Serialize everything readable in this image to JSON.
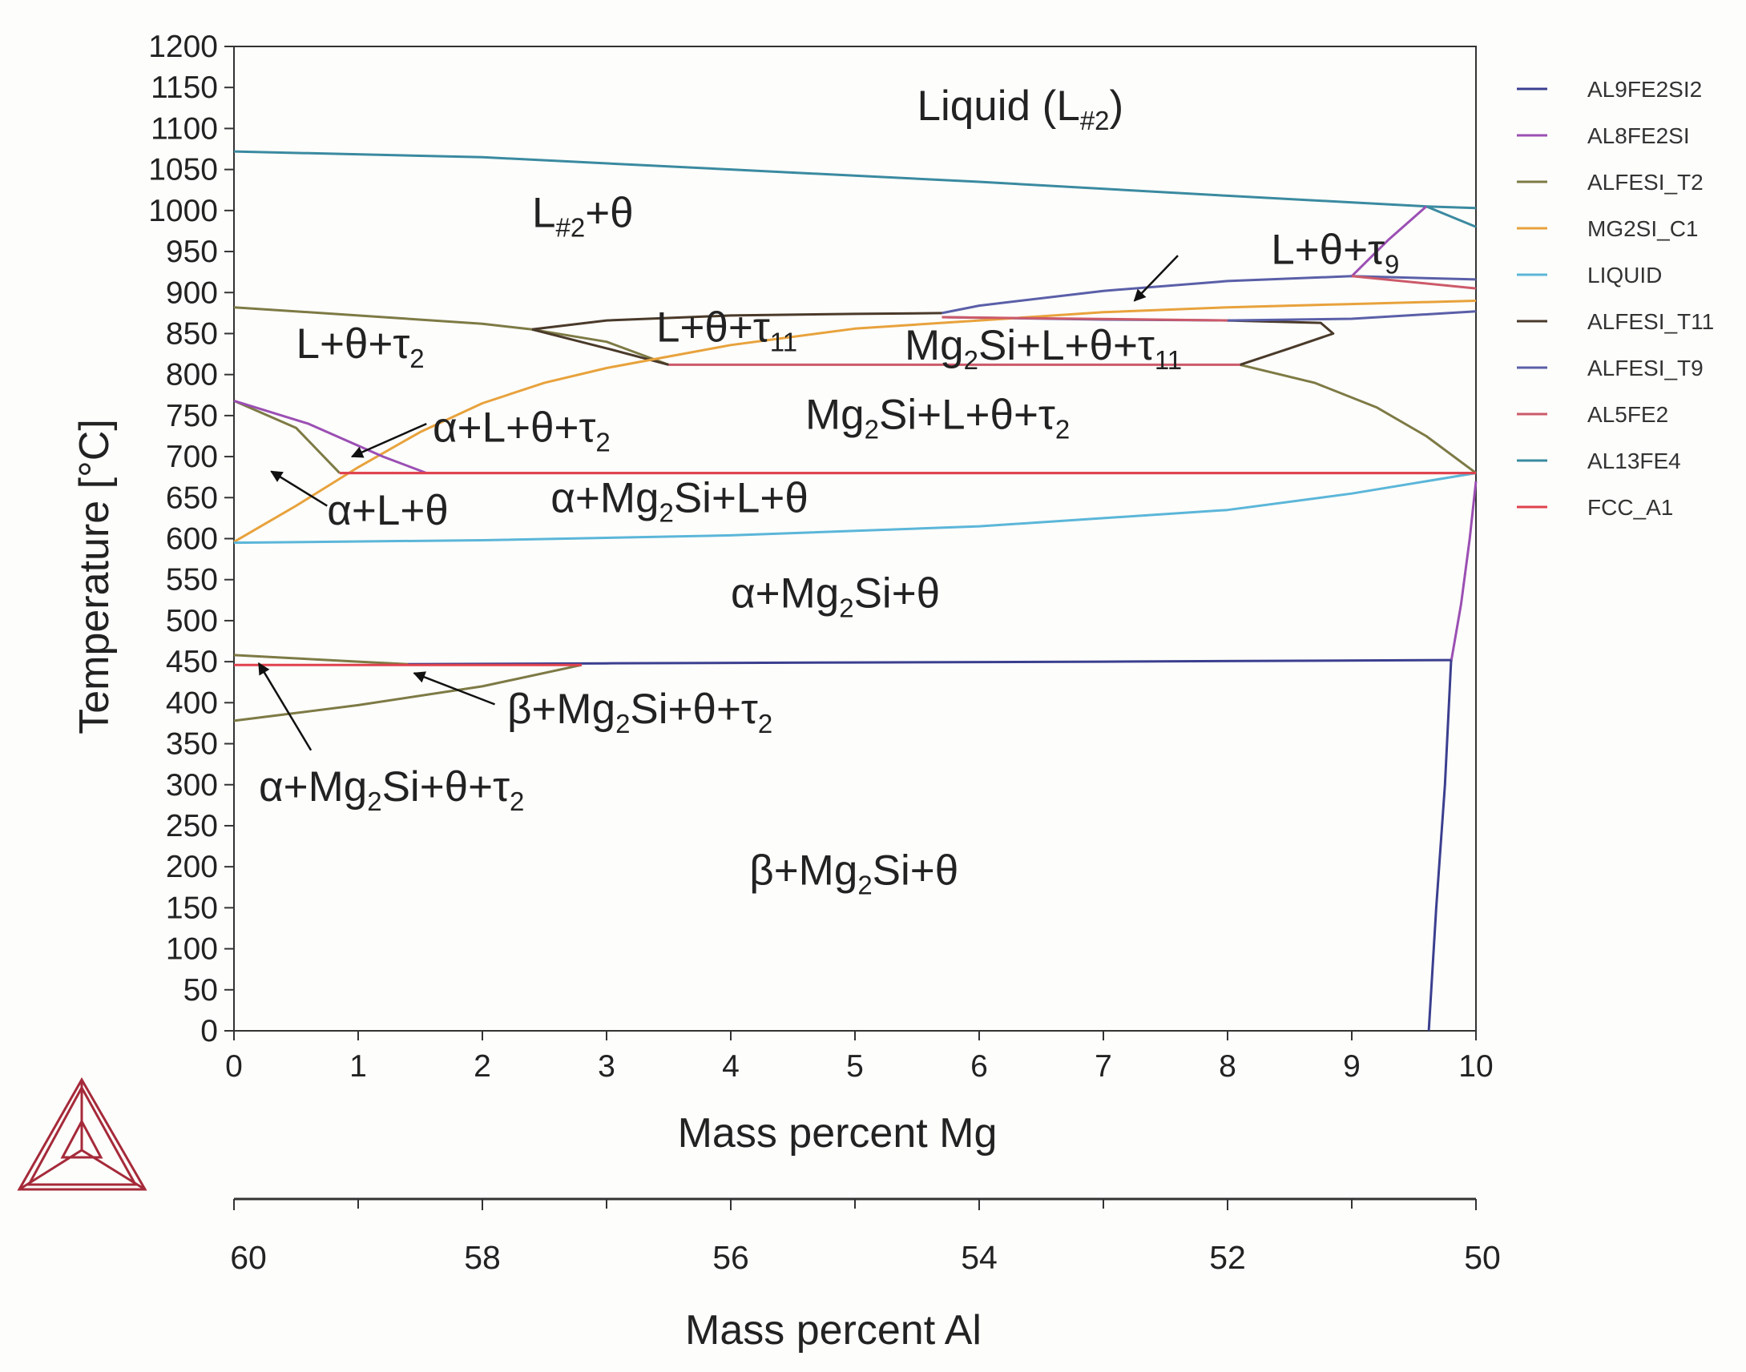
{
  "chart_data": {
    "type": "line",
    "title": "",
    "xlabel": "Mass percent Mg",
    "ylabel": "Temperature [°C]",
    "xlim": [
      0,
      10
    ],
    "ylim": [
      0,
      1200
    ],
    "x_ticks": [
      "0",
      "1",
      "2",
      "3",
      "4",
      "5",
      "6",
      "7",
      "8",
      "9",
      "10"
    ],
    "y_ticks": [
      "0",
      "50",
      "100",
      "150",
      "200",
      "250",
      "300",
      "350",
      "400",
      "450",
      "500",
      "550",
      "600",
      "650",
      "700",
      "750",
      "800",
      "850",
      "900",
      "950",
      "1000",
      "1050",
      "1100",
      "1150",
      "1200"
    ],
    "secondary_xlabel": "Mass percent Al",
    "secondary_x_ticks": [
      {
        "mg": 0,
        "label": "60"
      },
      {
        "mg": 2,
        "label": "58"
      },
      {
        "mg": 4,
        "label": "56"
      },
      {
        "mg": 6,
        "label": "54"
      },
      {
        "mg": 8,
        "label": "52"
      },
      {
        "mg": 10,
        "label": "50"
      }
    ],
    "secondary_minor_ticks": [
      1,
      3,
      5,
      7,
      9
    ],
    "legend_position": "right",
    "legend": [
      {
        "name": "AL9FE2SI2",
        "color": "#3b3f8f"
      },
      {
        "name": "AL8FE2SI",
        "color": "#9b4fb3"
      },
      {
        "name": "ALFESI_T2",
        "color": "#7d7a45"
      },
      {
        "name": "MG2SI_C1",
        "color": "#e8a23c"
      },
      {
        "name": "LIQUID",
        "color": "#5bb6d9"
      },
      {
        "name": "ALFESI_T11",
        "color": "#4a3a2a"
      },
      {
        "name": "ALFESI_T9",
        "color": "#5a5fa8"
      },
      {
        "name": "AL5FE2",
        "color": "#cc5a6a"
      },
      {
        "name": "AL13FE4",
        "color": "#3a8aa0"
      },
      {
        "name": "FCC_A1",
        "color": "#e0424e"
      }
    ],
    "series": [
      {
        "name": "AL13FE4",
        "color": "#3a8aa0",
        "points": [
          [
            0,
            1072
          ],
          [
            2,
            1065
          ],
          [
            4,
            1050
          ],
          [
            6,
            1035
          ],
          [
            8,
            1018
          ],
          [
            9.6,
            1005
          ],
          [
            10,
            1003
          ]
        ]
      },
      {
        "name": "AL13FE4",
        "color": "#3a8aa0",
        "points": [
          [
            9.6,
            1005
          ],
          [
            10,
            980
          ]
        ]
      },
      {
        "name": "ALFESI_T2",
        "color": "#7d7a45",
        "points": [
          [
            0,
            882
          ],
          [
            1,
            872
          ],
          [
            2,
            862
          ],
          [
            2.4,
            855
          ],
          [
            3,
            840
          ],
          [
            3.5,
            812
          ]
        ]
      },
      {
        "name": "ALFESI_T2",
        "color": "#7d7a45",
        "points": [
          [
            8.1,
            812
          ],
          [
            8.7,
            790
          ],
          [
            9.2,
            760
          ],
          [
            9.6,
            725
          ],
          [
            10,
            680
          ]
        ]
      },
      {
        "name": "ALFESI_T2",
        "color": "#7d7a45",
        "points": [
          [
            0,
            768
          ],
          [
            0.5,
            735
          ],
          [
            0.85,
            680
          ]
        ]
      },
      {
        "name": "ALFESI_T2",
        "color": "#7d7a45",
        "points": [
          [
            0,
            458
          ],
          [
            0.5,
            454
          ],
          [
            1,
            450
          ],
          [
            1.4,
            447
          ]
        ]
      },
      {
        "name": "ALFESI_T2",
        "color": "#7d7a45",
        "points": [
          [
            0,
            378
          ],
          [
            1,
            397
          ],
          [
            2,
            420
          ],
          [
            2.8,
            446
          ]
        ]
      },
      {
        "name": "ALFESI_T11",
        "color": "#4a3a2a",
        "points": [
          [
            2.4,
            855
          ],
          [
            3,
            866
          ],
          [
            4,
            872
          ],
          [
            5,
            874
          ],
          [
            5.7,
            875
          ]
        ]
      },
      {
        "name": "ALFESI_T11",
        "color": "#4a3a2a",
        "points": [
          [
            8,
            866
          ],
          [
            8.75,
            863
          ],
          [
            8.85,
            850
          ],
          [
            8.5,
            832
          ],
          [
            8.1,
            812
          ]
        ]
      },
      {
        "name": "ALFESI_T11",
        "color": "#4a3a2a",
        "points": [
          [
            2.4,
            855
          ],
          [
            3,
            832
          ],
          [
            3.5,
            812
          ]
        ]
      },
      {
        "name": "ALFESI_T9",
        "color": "#5a5fa8",
        "points": [
          [
            5.7,
            875
          ],
          [
            6,
            884
          ],
          [
            7,
            902
          ],
          [
            8,
            914
          ],
          [
            9,
            920
          ],
          [
            10,
            916
          ]
        ]
      },
      {
        "name": "ALFESI_T9",
        "color": "#5a5fa8",
        "points": [
          [
            5.7,
            870
          ],
          [
            7,
            867
          ],
          [
            8,
            866
          ],
          [
            9,
            868
          ],
          [
            10,
            877
          ]
        ]
      },
      {
        "name": "MG2SI_C1",
        "color": "#e8a23c",
        "points": [
          [
            0,
            596
          ],
          [
            0.5,
            640
          ],
          [
            1,
            687
          ],
          [
            1.5,
            730
          ],
          [
            2,
            765
          ],
          [
            2.5,
            790
          ],
          [
            3,
            808
          ],
          [
            3.5,
            822
          ],
          [
            4,
            836
          ],
          [
            5,
            856
          ],
          [
            6,
            866
          ],
          [
            7,
            876
          ],
          [
            8,
            882
          ],
          [
            9,
            886
          ],
          [
            10,
            890
          ]
        ]
      },
      {
        "name": "LIQUID",
        "color": "#5bb6d9",
        "points": [
          [
            0,
            595
          ],
          [
            2,
            598
          ],
          [
            4,
            604
          ],
          [
            6,
            615
          ],
          [
            8,
            635
          ],
          [
            9,
            655
          ],
          [
            10,
            680
          ]
        ]
      },
      {
        "name": "AL8FE2SI",
        "color": "#9b4fb3",
        "points": [
          [
            0,
            768
          ],
          [
            0.6,
            740
          ],
          [
            1.2,
            700
          ],
          [
            1.55,
            680
          ]
        ]
      },
      {
        "name": "AL8FE2SI",
        "color": "#9b4fb3",
        "points": [
          [
            9,
            920
          ],
          [
            9.3,
            965
          ],
          [
            9.6,
            1005
          ]
        ]
      },
      {
        "name": "AL8FE2SI",
        "color": "#9b4fb3",
        "points": [
          [
            10,
            670
          ],
          [
            9.95,
            600
          ],
          [
            9.88,
            520
          ],
          [
            9.8,
            450
          ]
        ]
      },
      {
        "name": "AL9FE2SI2",
        "color": "#3b3f8f",
        "points": [
          [
            1.4,
            447
          ],
          [
            3,
            448
          ],
          [
            5,
            449
          ],
          [
            7,
            450
          ],
          [
            9.8,
            452
          ]
        ]
      },
      {
        "name": "AL9FE2SI2",
        "color": "#3b3f8f",
        "points": [
          [
            9.8,
            452
          ],
          [
            9.75,
            300
          ],
          [
            9.68,
            150
          ],
          [
            9.62,
            0
          ]
        ]
      },
      {
        "name": "AL5FE2",
        "color": "#cc5a6a",
        "points": [
          [
            0.85,
            680
          ],
          [
            3,
            680
          ],
          [
            6,
            680
          ],
          [
            10,
            680
          ]
        ]
      },
      {
        "name": "AL5FE2",
        "color": "#cc5a6a",
        "points": [
          [
            3.5,
            812
          ],
          [
            6,
            812
          ],
          [
            8.1,
            812
          ]
        ]
      },
      {
        "name": "AL5FE2",
        "color": "#cc5a6a",
        "points": [
          [
            5.7,
            870
          ],
          [
            8,
            866
          ]
        ]
      },
      {
        "name": "AL5FE2",
        "color": "#cc5a6a",
        "points": [
          [
            9,
            920
          ],
          [
            10,
            905
          ]
        ]
      },
      {
        "name": "FCC_A1",
        "color": "#e0424e",
        "points": [
          [
            0,
            446
          ],
          [
            1,
            446
          ],
          [
            2,
            446
          ],
          [
            2.8,
            446
          ]
        ]
      },
      {
        "name": "FCC_A1",
        "color": "#e0424e",
        "points": [
          [
            0.85,
            680
          ],
          [
            5,
            680
          ],
          [
            10,
            680
          ]
        ]
      }
    ],
    "region_labels": [
      {
        "parts": [
          [
            "Liquid (L",
            ""
          ],
          [
            "#2",
            "sub"
          ],
          [
            ")",
            ""
          ]
        ],
        "x": 5.5,
        "y": 1110
      },
      {
        "parts": [
          [
            "L",
            ""
          ],
          [
            "#2",
            "sub"
          ],
          [
            "+θ",
            ""
          ]
        ],
        "x": 2.4,
        "y": 980
      },
      {
        "parts": [
          [
            "L+θ+τ",
            ""
          ],
          [
            "9",
            "sub"
          ]
        ],
        "x": 8.35,
        "y": 935
      },
      {
        "parts": [
          [
            "L+θ+τ",
            ""
          ],
          [
            "2",
            "sub"
          ]
        ],
        "x": 0.5,
        "y": 820
      },
      {
        "parts": [
          [
            "L+θ+τ",
            ""
          ],
          [
            "11",
            "sub"
          ]
        ],
        "x": 3.4,
        "y": 840
      },
      {
        "parts": [
          [
            "Mg",
            ""
          ],
          [
            "2",
            "sub"
          ],
          [
            "Si+L+θ+τ",
            ""
          ],
          [
            "11",
            "sub"
          ]
        ],
        "x": 5.4,
        "y": 818
      },
      {
        "parts": [
          [
            "Mg",
            ""
          ],
          [
            "2",
            "sub"
          ],
          [
            "Si+L+θ+τ",
            ""
          ],
          [
            "2",
            "sub"
          ]
        ],
        "x": 4.6,
        "y": 734
      },
      {
        "parts": [
          [
            "α+L+θ+τ",
            ""
          ],
          [
            "2",
            "sub"
          ]
        ],
        "x": 1.6,
        "y": 718
      },
      {
        "parts": [
          [
            "α+L+θ",
            ""
          ]
        ],
        "x": 0.75,
        "y": 617
      },
      {
        "parts": [
          [
            "α+Mg",
            ""
          ],
          [
            "2",
            "sub"
          ],
          [
            "Si+L+θ",
            ""
          ]
        ],
        "x": 2.55,
        "y": 632
      },
      {
        "parts": [
          [
            "α+Mg",
            ""
          ],
          [
            "2",
            "sub"
          ],
          [
            "Si+θ",
            ""
          ]
        ],
        "x": 4.0,
        "y": 516
      },
      {
        "parts": [
          [
            "β+Mg",
            ""
          ],
          [
            "2",
            "sub"
          ],
          [
            "Si+θ+τ",
            ""
          ],
          [
            "2",
            "sub"
          ]
        ],
        "x": 2.2,
        "y": 375
      },
      {
        "parts": [
          [
            "α+Mg",
            ""
          ],
          [
            "2",
            "sub"
          ],
          [
            "Si+θ+τ",
            ""
          ],
          [
            "2",
            "sub"
          ]
        ],
        "x": 0.2,
        "y": 280
      },
      {
        "parts": [
          [
            "β+Mg",
            ""
          ],
          [
            "2",
            "sub"
          ],
          [
            "Si+θ",
            ""
          ]
        ],
        "x": 4.15,
        "y": 178
      }
    ],
    "arrows": [
      {
        "from": [
          7.6,
          945
        ],
        "to": [
          7.25,
          890
        ]
      },
      {
        "from": [
          1.55,
          740
        ],
        "to": [
          0.95,
          700
        ]
      },
      {
        "from": [
          0.75,
          640
        ],
        "to": [
          0.3,
          682
        ]
      },
      {
        "from": [
          2.1,
          398
        ],
        "to": [
          1.45,
          436
        ]
      },
      {
        "from": [
          0.62,
          342
        ],
        "to": [
          0.2,
          448
        ]
      }
    ]
  }
}
